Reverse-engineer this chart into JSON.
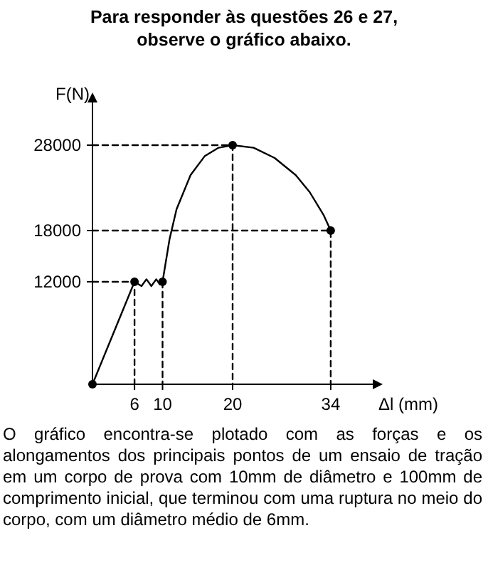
{
  "chart_data": {
    "type": "line",
    "title": "Para responder às questões 26 e 27,\nobserve o gráfico abaixo.",
    "xlabel": "Δl (mm)",
    "ylabel": "F(N)",
    "xlim": [
      0,
      40
    ],
    "ylim": [
      0,
      33000
    ],
    "xticks": [
      6,
      10,
      20,
      34
    ],
    "yticks": [
      12000,
      18000,
      28000
    ],
    "grid": false,
    "series": [
      {
        "color": "#000000",
        "line_style": "solid",
        "marker": "none",
        "x": [
          0,
          6,
          7,
          7.7,
          8.4,
          9.1,
          9.6,
          10,
          11,
          12,
          14,
          16,
          18,
          20,
          23,
          26,
          29,
          31,
          33,
          34
        ],
        "values": [
          0,
          12000,
          11500,
          12300,
          11500,
          12300,
          11700,
          12000,
          17000,
          20500,
          24500,
          26700,
          27700,
          28000,
          27700,
          26500,
          24500,
          22500,
          19800,
          18000
        ]
      },
      {
        "type": "scatter",
        "color": "#000000",
        "marker": "circle",
        "x": [
          0,
          6,
          10,
          20,
          34
        ],
        "values": [
          0,
          12000,
          12000,
          28000,
          18000
        ]
      },
      {
        "color": "#000000",
        "line_style": "dashed",
        "marker": "none",
        "x": [
          0,
          20,
          20
        ],
        "values": [
          28000,
          28000,
          0
        ]
      },
      {
        "color": "#000000",
        "line_style": "dashed",
        "marker": "none",
        "x": [
          0,
          34,
          34
        ],
        "values": [
          18000,
          18000,
          0
        ]
      },
      {
        "color": "#000000",
        "line_style": "dashed",
        "marker": "none",
        "x": [
          0,
          6,
          6
        ],
        "values": [
          12000,
          12000,
          0
        ]
      },
      {
        "color": "#000000",
        "line_style": "dashed",
        "marker": "none",
        "x": [
          10,
          10
        ],
        "values": [
          12000,
          0
        ]
      }
    ],
    "annotations": [
      "O gráfico encontra-se plotado com as forças e os alongamentos dos principais pontos de um ensaio de tração em um corpo de prova com 10mm de diâmetro e 100mm de comprimento inicial, que terminou com uma ruptura no meio do corpo, com um diâmetro médio de 6mm."
    ]
  }
}
